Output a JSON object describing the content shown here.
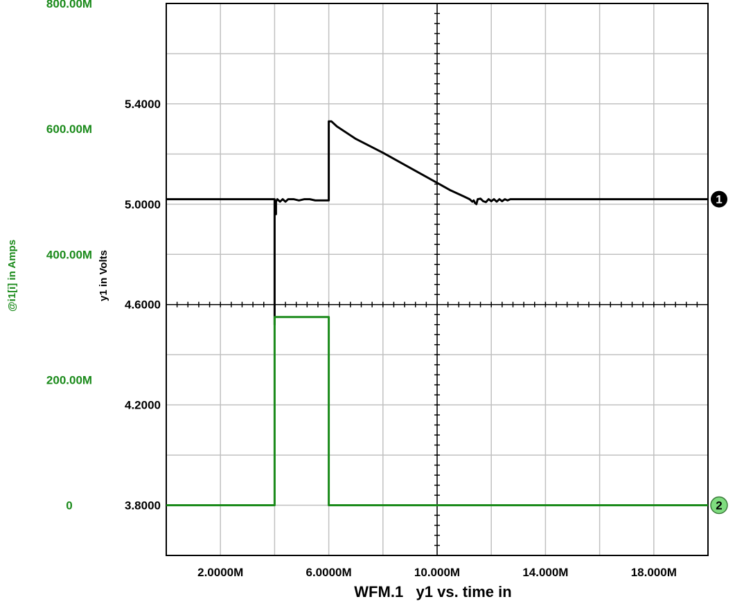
{
  "colors": {
    "voltage": "#000000",
    "current": "#1a8a1a",
    "grid": "#c0c0c0",
    "frame": "#000000",
    "marker2_bg": "#7fdc7f"
  },
  "chart_data": {
    "type": "line",
    "title": "WFM.1   y1 vs. time in",
    "xlim": [
      0,
      20000000
    ],
    "x_ticks": [
      {
        "value": 2000000,
        "label": "2.0000M"
      },
      {
        "value": 6000000,
        "label": "6.0000M"
      },
      {
        "value": 10000000,
        "label": "10.000M"
      },
      {
        "value": 14000000,
        "label": "14.000M"
      },
      {
        "value": 18000000,
        "label": "18.000M"
      }
    ],
    "x_grid": [
      0,
      2000000,
      4000000,
      6000000,
      8000000,
      10000000,
      12000000,
      14000000,
      16000000,
      18000000,
      20000000
    ],
    "axes": [
      {
        "id": "y1",
        "label": "y1 in Volts",
        "ylim": [
          3.6,
          5.8
        ],
        "ticks": [
          {
            "value": 5.4,
            "label": "5.4000"
          },
          {
            "value": 5.0,
            "label": "5.0000"
          },
          {
            "value": 4.6,
            "label": "4.6000"
          },
          {
            "value": 4.2,
            "label": "4.2000"
          },
          {
            "value": 3.8,
            "label": "3.8000"
          }
        ],
        "grid_step": 0.2
      },
      {
        "id": "i1",
        "label": "@i1[i] in Amps",
        "ylim": [
          -0.08,
          0.8
        ],
        "ticks": [
          {
            "value": 0.8,
            "label": "800.00M"
          },
          {
            "value": 0.6,
            "label": "600.00M"
          },
          {
            "value": 0.4,
            "label": "400.00M"
          },
          {
            "value": 0.2,
            "label": "200.00M"
          },
          {
            "value": 0.0,
            "label": "0"
          }
        ]
      }
    ],
    "series": [
      {
        "axis": "y1",
        "marker": "1",
        "x": [
          0,
          4000000,
          4000000,
          4000000,
          4050000,
          4050000,
          4100000,
          4200000,
          4300000,
          4400000,
          4500000,
          4700000,
          4900000,
          5100000,
          5300000,
          5500000,
          5700000,
          5900000,
          6000000,
          6000000,
          6100000,
          6300000,
          7000000,
          8000000,
          9000000,
          10000000,
          10500000,
          11000000,
          11200000,
          11300000,
          11350000,
          11400000,
          11450000,
          11500000,
          11600000,
          11700000,
          11800000,
          11900000,
          12000000,
          12100000,
          12200000,
          12300000,
          12400000,
          12500000,
          12600000,
          12700000,
          12800000,
          20000000
        ],
        "values": [
          5.02,
          5.02,
          4.52,
          5.0,
          4.96,
          5.01,
          5.02,
          5.01,
          5.02,
          5.01,
          5.02,
          5.02,
          5.015,
          5.02,
          5.02,
          5.015,
          5.015,
          5.015,
          5.015,
          5.33,
          5.33,
          5.31,
          5.26,
          5.205,
          5.145,
          5.085,
          5.055,
          5.03,
          5.02,
          5.01,
          5.015,
          5.005,
          5.0,
          5.02,
          5.022,
          5.012,
          5.008,
          5.02,
          5.012,
          5.02,
          5.01,
          5.02,
          5.012,
          5.02,
          5.015,
          5.02,
          5.02,
          5.02
        ]
      },
      {
        "axis": "i1",
        "marker": "2",
        "x": [
          0,
          4000000,
          4000000,
          6000000,
          6000000,
          20000000
        ],
        "values": [
          0,
          0,
          0.3,
          0.3,
          0,
          0
        ]
      }
    ]
  }
}
